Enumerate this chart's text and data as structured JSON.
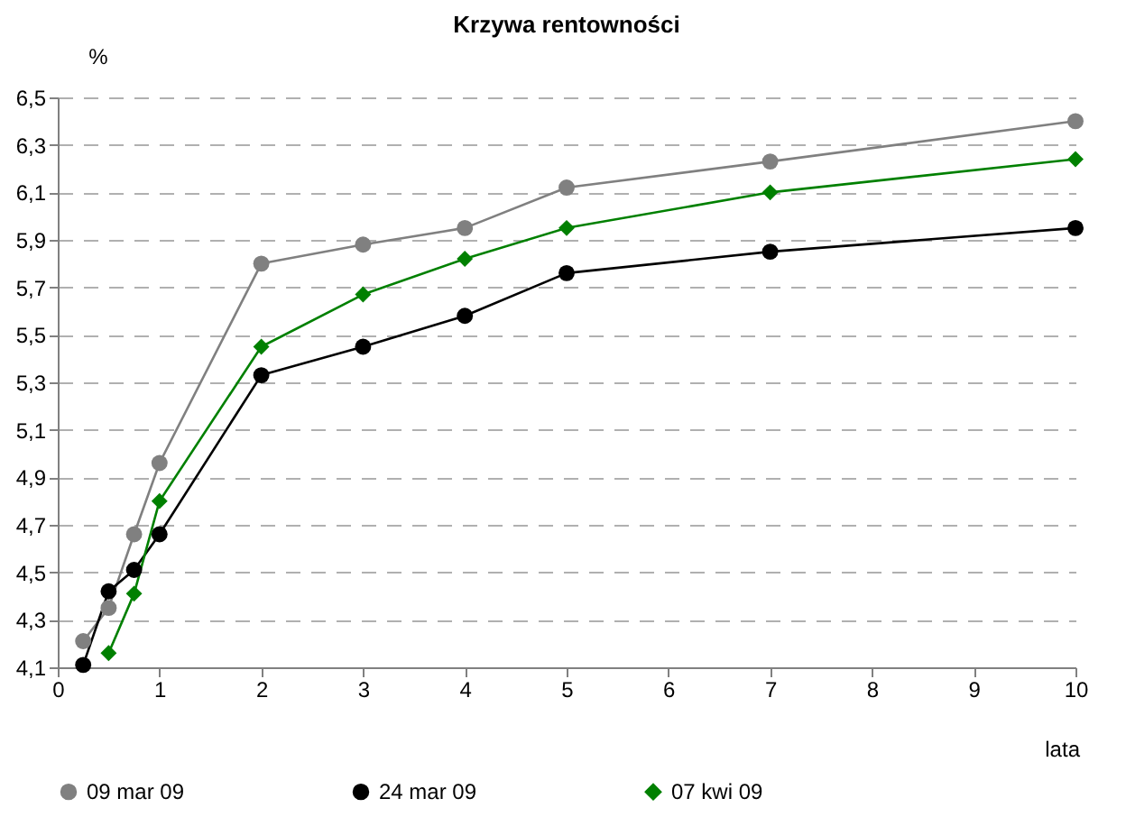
{
  "chart_data": {
    "type": "line",
    "title": "Krzywa rentowności",
    "xlabel": "lata",
    "ylabel": "%",
    "x": [
      0.25,
      0.5,
      0.75,
      1,
      2,
      3,
      4,
      5,
      7,
      10
    ],
    "series": [
      {
        "name": "09 mar 09",
        "color": "#808080",
        "marker": "circle",
        "values": [
          4.21,
          4.35,
          4.66,
          4.96,
          5.8,
          5.88,
          5.95,
          6.12,
          6.23,
          6.4
        ]
      },
      {
        "name": "24 mar 09",
        "color": "#000000",
        "marker": "circle",
        "values": [
          4.11,
          4.42,
          4.51,
          4.66,
          5.33,
          5.45,
          5.58,
          5.76,
          5.85,
          5.95
        ]
      },
      {
        "name": "07 kwi 09",
        "color": "#008000",
        "marker": "diamond",
        "x": [
          0.5,
          0.75,
          1,
          2,
          3,
          4,
          5,
          7,
          10
        ],
        "values": [
          4.16,
          4.41,
          4.8,
          5.45,
          5.67,
          5.82,
          5.95,
          6.1,
          6.24
        ]
      }
    ],
    "xlim": [
      0,
      10
    ],
    "xticks": [
      0,
      1,
      2,
      3,
      4,
      5,
      6,
      7,
      8,
      9,
      10
    ],
    "ylim": [
      4.1,
      6.5
    ],
    "yticks": [
      {
        "value": 4.1,
        "label": "4,1"
      },
      {
        "value": 4.3,
        "label": "4,3"
      },
      {
        "value": 4.5,
        "label": "4,5"
      },
      {
        "value": 4.7,
        "label": "4,7"
      },
      {
        "value": 4.9,
        "label": "4,9"
      },
      {
        "value": 5.1,
        "label": "5,1"
      },
      {
        "value": 5.3,
        "label": "5,3"
      },
      {
        "value": 5.5,
        "label": "5,5"
      },
      {
        "value": 5.7,
        "label": "5,7"
      },
      {
        "value": 5.9,
        "label": "5,9"
      },
      {
        "value": 6.1,
        "label": "6,1"
      },
      {
        "value": 6.3,
        "label": "6,3"
      },
      {
        "value": 6.5,
        "label": "6,5"
      }
    ],
    "grid": "y",
    "legend": "bottom",
    "line_style": "solid"
  }
}
